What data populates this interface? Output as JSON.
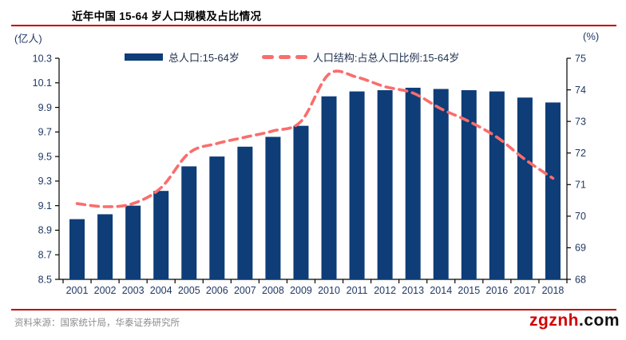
{
  "title": "近年中国 15-64 岁人口规模及占比情况",
  "left_axis_unit": "(亿人)",
  "right_axis_unit": "(%)",
  "legend": {
    "bar_label": "总人口:15-64岁",
    "line_label": "人口结构:占总人口比例:15-64岁"
  },
  "footer": {
    "source": "资料来源：国家统计局，华泰证券研究所",
    "watermark_red": "zgznh",
    "watermark_black": ".com"
  },
  "colors": {
    "bar": "#0e3d78",
    "line": "#fa6d6d",
    "rule": "#c00000",
    "axis_text": "#203864",
    "axis_line": "#000000",
    "watermark_red": "#d40000",
    "watermark_black": "#111111",
    "source_text": "#8c8c8c"
  },
  "chart_data": {
    "type": "bar",
    "title": "近年中国 15-64 岁人口规模及占比情况",
    "categories": [
      2001,
      2002,
      2003,
      2004,
      2005,
      2006,
      2007,
      2008,
      2009,
      2010,
      2011,
      2012,
      2013,
      2014,
      2015,
      2016,
      2017,
      2018
    ],
    "series": [
      {
        "name": "总人口:15-64岁",
        "type": "bar",
        "axis": "left",
        "values": [
          8.99,
          9.03,
          9.1,
          9.22,
          9.42,
          9.5,
          9.58,
          9.66,
          9.75,
          9.99,
          10.03,
          10.04,
          10.06,
          10.05,
          10.04,
          10.03,
          9.98,
          9.94
        ]
      },
      {
        "name": "人口结构:占总人口比例:15-64岁",
        "type": "line",
        "axis": "right",
        "values": [
          70.4,
          70.3,
          70.4,
          70.9,
          72.0,
          72.3,
          72.5,
          72.7,
          73.0,
          74.5,
          74.4,
          74.1,
          73.9,
          73.4,
          73.0,
          72.5,
          71.8,
          71.2
        ]
      }
    ],
    "left_axis": {
      "min": 8.5,
      "max": 10.3,
      "step": 0.2,
      "unit": "亿人",
      "decimals": 1
    },
    "right_axis": {
      "min": 68,
      "max": 75,
      "step": 1,
      "unit": "%",
      "decimals": 0
    },
    "grid": false,
    "legend_position": "top"
  }
}
